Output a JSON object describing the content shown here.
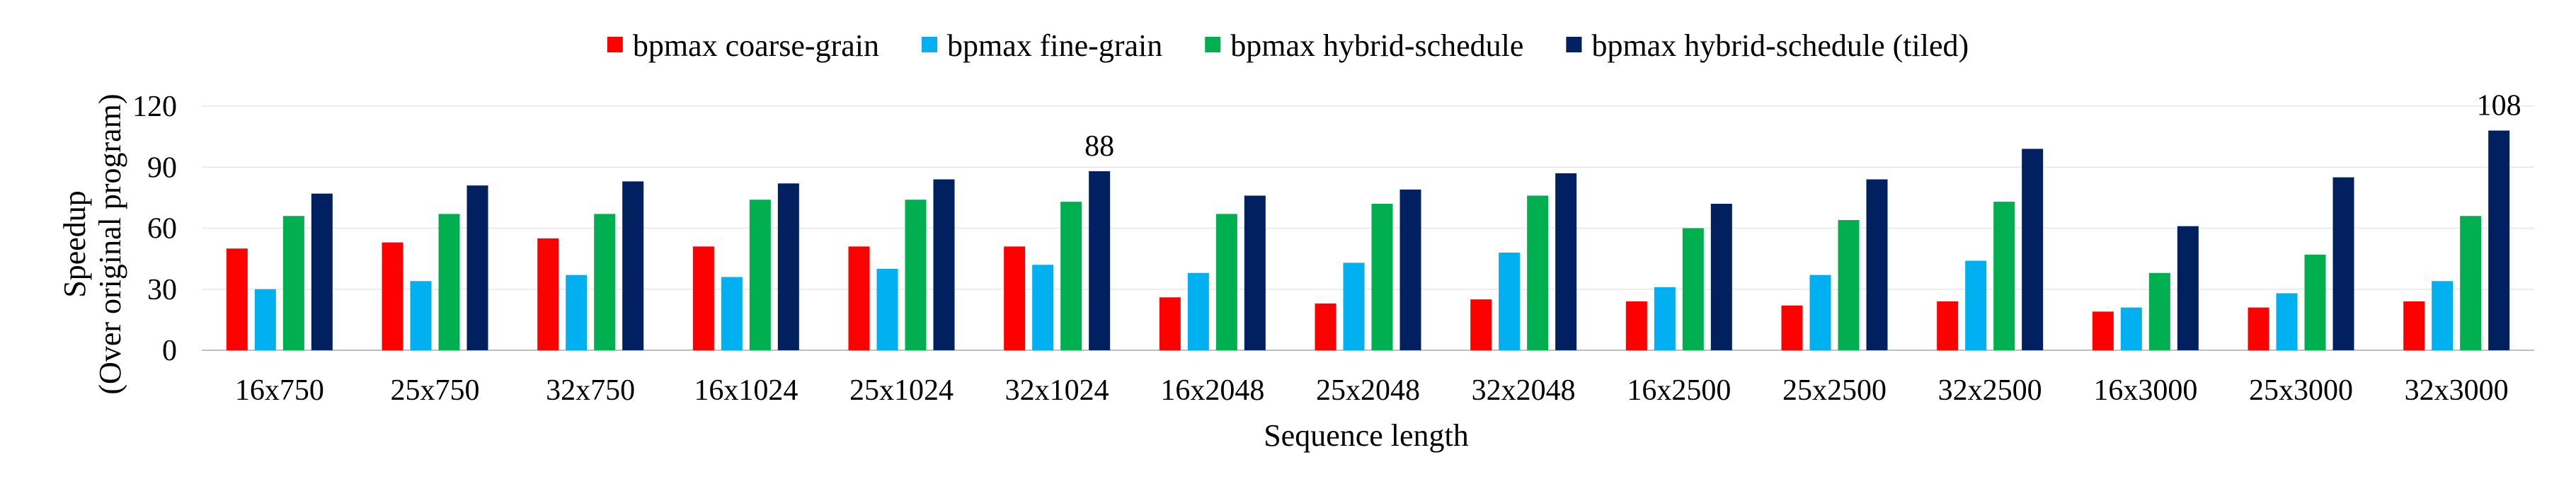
{
  "chart_data": {
    "type": "bar",
    "xlabel": "Sequence length",
    "ylabel": "Speedup",
    "ylabel_sub": "(Over original program)",
    "ylim": [
      0,
      120
    ],
    "yticks": [
      0,
      30,
      60,
      90,
      120
    ],
    "grid": true,
    "legend_position": "top",
    "categories": [
      "16x750",
      "25x750",
      "32x750",
      "16x1024",
      "25x1024",
      "32x1024",
      "16x2048",
      "25x2048",
      "32x2048",
      "16x2500",
      "25x2500",
      "32x2500",
      "16x3000",
      "25x3000",
      "32x3000"
    ],
    "series": [
      {
        "name": "bpmax coarse-grain",
        "color": "#ff0000",
        "values": [
          50,
          53,
          55,
          51,
          51,
          51,
          26,
          23,
          25,
          24,
          22,
          24,
          19,
          21,
          24
        ]
      },
      {
        "name": "bpmax fine-grain",
        "color": "#00b0f0",
        "values": [
          30,
          34,
          37,
          36,
          40,
          42,
          38,
          43,
          48,
          31,
          37,
          44,
          21,
          28,
          34
        ]
      },
      {
        "name": "bpmax hybrid-schedule",
        "color": "#00b050",
        "values": [
          66,
          67,
          67,
          74,
          74,
          73,
          67,
          72,
          76,
          60,
          64,
          73,
          38,
          47,
          66
        ]
      },
      {
        "name": "bpmax hybrid-schedule (tiled)",
        "color": "#002060",
        "values": [
          77,
          81,
          83,
          82,
          84,
          88,
          76,
          79,
          87,
          72,
          84,
          99,
          61,
          85,
          108
        ]
      }
    ],
    "annotations": [
      {
        "category_index": 5,
        "series_index": 3,
        "text": "88"
      },
      {
        "category_index": 14,
        "series_index": 3,
        "text": "108"
      }
    ]
  }
}
